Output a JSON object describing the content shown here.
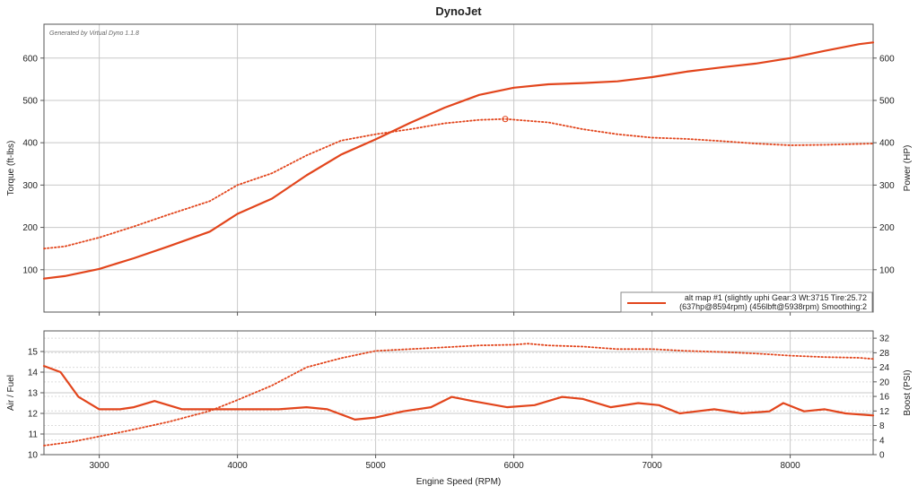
{
  "colors": {
    "series": "#e2451c",
    "grid": "#c8c8c8",
    "frame": "#555555"
  },
  "chart_data": [
    {
      "type": "line",
      "title": "DynoJet",
      "watermark": "Generated by Virtual Dyno 1.1.8",
      "xlabel": "",
      "ylabel": "Torque (ft-lbs)",
      "y2label": "Power (HP)",
      "xlim": [
        2600,
        8600
      ],
      "ylim": [
        0,
        680
      ],
      "y2lim": [
        0,
        680
      ],
      "x_ticks": [
        3000,
        4000,
        5000,
        6000,
        7000,
        8000
      ],
      "y_ticks": [
        100,
        200,
        300,
        400,
        500,
        600
      ],
      "y2_ticks": [
        100,
        200,
        300,
        400,
        500,
        600
      ],
      "grid": true,
      "legend_position": "bottom-right",
      "legend_lines": [
        "alt map #1 (slightly uphi Gear:3 Wt:3715 Tire:25.72",
        "(637hp@8594rpm) (456lbft@5938rpm) Smoothing:2"
      ],
      "peak_marker": {
        "x": 5938,
        "y": 456
      },
      "series": [
        {
          "style": "solid",
          "axis": "right",
          "x": [
            2600,
            2750,
            3000,
            3250,
            3500,
            3800,
            4000,
            4250,
            4500,
            4750,
            5000,
            5250,
            5500,
            5750,
            6000,
            6250,
            6500,
            6750,
            7000,
            7250,
            7500,
            7750,
            8000,
            8250,
            8500,
            8600
          ],
          "y": [
            79,
            85,
            102,
            127,
            155,
            190,
            232,
            268,
            323,
            372,
            408,
            447,
            483,
            513,
            530,
            538,
            541,
            545,
            555,
            568,
            578,
            587,
            600,
            617,
            633,
            637
          ]
        },
        {
          "style": "dotted",
          "axis": "left",
          "x": [
            2600,
            2750,
            3000,
            3250,
            3500,
            3800,
            4000,
            4250,
            4500,
            4750,
            5000,
            5250,
            5500,
            5750,
            5938,
            6250,
            6500,
            6750,
            7000,
            7250,
            7500,
            7750,
            8000,
            8250,
            8600
          ],
          "y": [
            150,
            155,
            176,
            202,
            230,
            262,
            300,
            328,
            370,
            405,
            420,
            432,
            446,
            454,
            456,
            448,
            432,
            420,
            412,
            409,
            404,
            398,
            394,
            395,
            398
          ]
        }
      ]
    },
    {
      "type": "line",
      "xlabel": "Engine Speed (RPM)",
      "ylabel": "Air / Fuel",
      "y2label": "Boost (PSI)",
      "xlim": [
        2600,
        8600
      ],
      "ylim": [
        10,
        16
      ],
      "y2lim": [
        0,
        34
      ],
      "x_ticks": [
        3000,
        4000,
        5000,
        6000,
        7000,
        8000
      ],
      "y_ticks": [
        10,
        11,
        12,
        13,
        14,
        15
      ],
      "y2_ticks": [
        0,
        4,
        8,
        12,
        16,
        20,
        24,
        28,
        32
      ],
      "grid": true,
      "series": [
        {
          "style": "solid",
          "axis": "left",
          "x": [
            2600,
            2720,
            2850,
            3000,
            3150,
            3250,
            3400,
            3600,
            3800,
            4000,
            4300,
            4500,
            4650,
            4850,
            5000,
            5200,
            5400,
            5550,
            5700,
            5950,
            6150,
            6350,
            6500,
            6700,
            6900,
            7050,
            7200,
            7450,
            7650,
            7850,
            7950,
            8100,
            8250,
            8400,
            8600
          ],
          "y": [
            14.3,
            14.0,
            12.8,
            12.2,
            12.2,
            12.3,
            12.6,
            12.2,
            12.2,
            12.2,
            12.2,
            12.3,
            12.2,
            11.7,
            11.8,
            12.1,
            12.3,
            12.8,
            12.6,
            12.3,
            12.4,
            12.8,
            12.7,
            12.3,
            12.5,
            12.4,
            12.0,
            12.2,
            12.0,
            12.1,
            12.5,
            12.1,
            12.2,
            12.0,
            11.9
          ]
        },
        {
          "style": "dotted",
          "axis": "right",
          "x": [
            2600,
            2800,
            3000,
            3200,
            3500,
            3800,
            4000,
            4250,
            4500,
            4750,
            5000,
            5250,
            5500,
            5750,
            6000,
            6100,
            6250,
            6500,
            6750,
            7000,
            7250,
            7500,
            7750,
            8000,
            8250,
            8500,
            8600
          ],
          "y": [
            2.5,
            3.5,
            5.0,
            6.5,
            9.0,
            12.0,
            15.0,
            19.0,
            24.0,
            26.5,
            28.5,
            29.0,
            29.5,
            30.0,
            30.2,
            30.5,
            30.0,
            29.7,
            29.0,
            29.0,
            28.5,
            28.2,
            27.8,
            27.2,
            26.8,
            26.6,
            26.3
          ]
        }
      ]
    }
  ]
}
